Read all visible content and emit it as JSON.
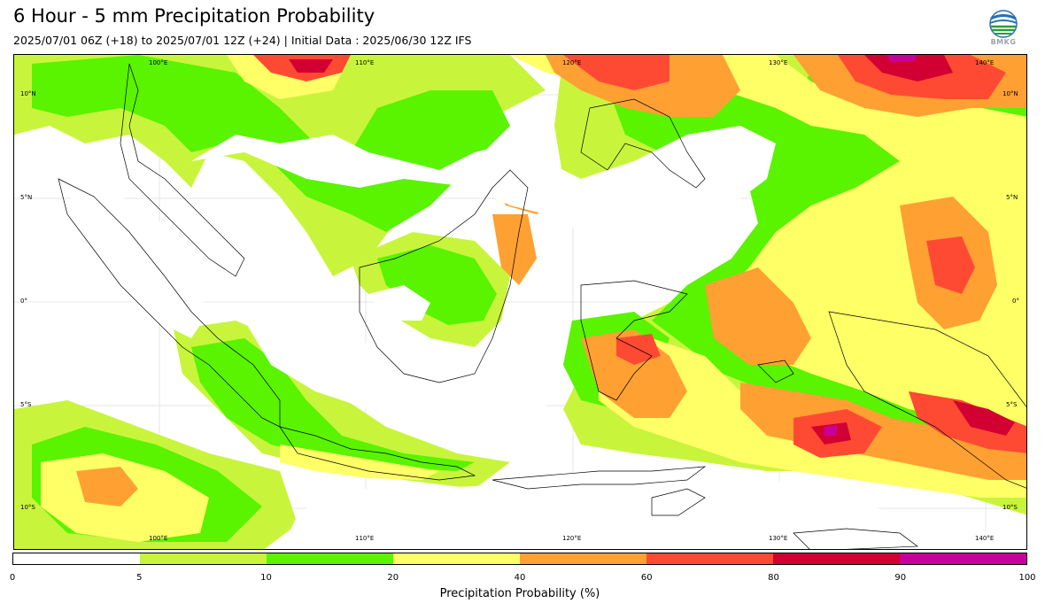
{
  "title": "6 Hour - 5 mm Precipitation Probability",
  "subtitle": "2025/07/01 06Z (+18) to 2025/07/01 12Z (+24) | Initial Data : 2025/06/30 12Z IFS",
  "logo": {
    "icon": "bmkg-logo",
    "text": "BMKG"
  },
  "map": {
    "lon_labels": [
      "100°E",
      "110°E",
      "120°E",
      "130°E",
      "140°E"
    ],
    "lat_labels": [
      "10°N",
      "5°N",
      "0°",
      "5°S",
      "10°S"
    ],
    "colors": {
      "coastline": "#000000",
      "gridline": "#cccccc"
    }
  },
  "legend": {
    "label": "Precipitation Probability (%)",
    "ticks": [
      "0",
      "5",
      "10",
      "20",
      "40",
      "60",
      "80",
      "90",
      "100"
    ],
    "colors": [
      "#ffffff",
      "#c8f53c",
      "#5af300",
      "#ffff66",
      "#ffa033",
      "#ff4a33",
      "#d20032",
      "#c8009b"
    ]
  }
}
